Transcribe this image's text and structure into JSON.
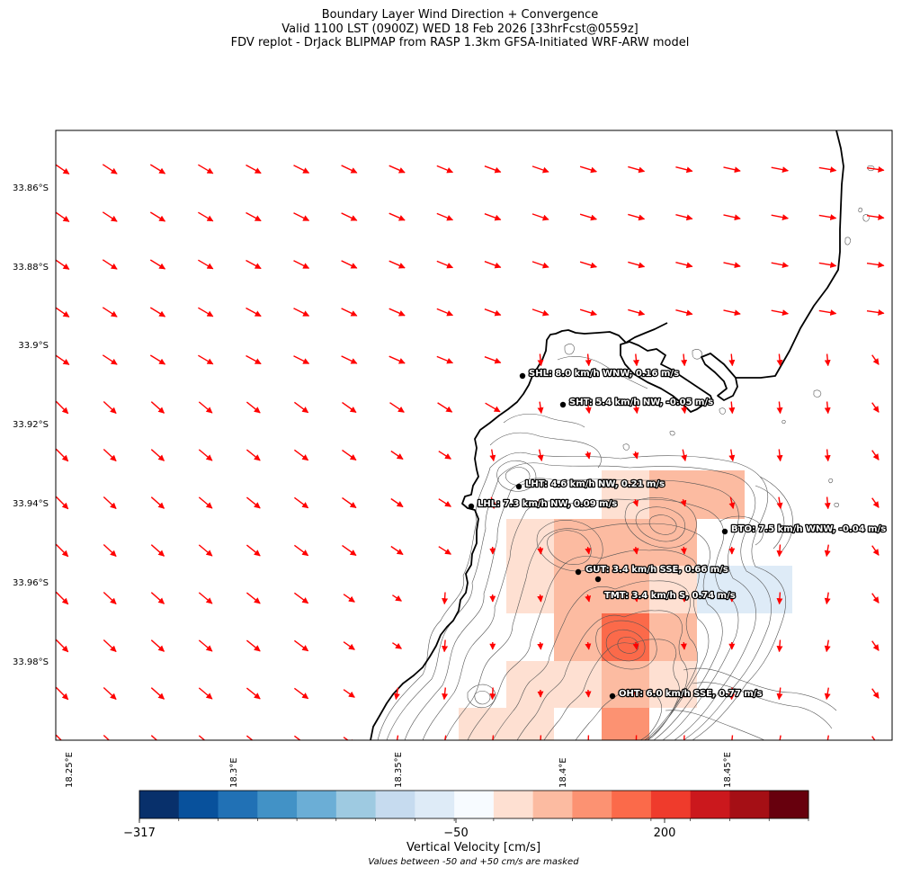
{
  "title": {
    "line1": "Boundary Layer Wind Direction + Convergence",
    "line2": "Valid 1100 LST (0900Z) WED 18 Feb 2026 [33hrFcst@0559z]",
    "line3": "FDV replot - DrJack BLIPMAP from RASP 1.3km GFSA-Initiated WRF-ARW model"
  },
  "map": {
    "lat_labels": [
      "33.86°S",
      "33.88°S",
      "33.9°S",
      "33.92°S",
      "33.94°S",
      "33.96°S",
      "33.98°S"
    ],
    "lon_labels": [
      "18.25°E",
      "18.3°E",
      "18.35°E",
      "18.4°E",
      "18.45°E"
    ],
    "wind_vector_color": "#ff0000",
    "stations": [
      {
        "id": "SHL",
        "label": "SHL: 8.0 km/h WNW, 0.16 m/s"
      },
      {
        "id": "SHT",
        "label": "SHT: 5.4 km/h NW, -0.05 m/s"
      },
      {
        "id": "LHT",
        "label": "LHT: 4.6 km/h NW, 0.21 m/s"
      },
      {
        "id": "LHL",
        "label": "LHL: 7.3 km/h NW, 0.09 m/s"
      },
      {
        "id": "BTO",
        "label": "BTO: 7.5 km/h WNW, -0.04 m/s"
      },
      {
        "id": "GUT",
        "label": "GUT: 3.4 km/h SSE, 0.66 m/s"
      },
      {
        "id": "TMT",
        "label": "TMT: 3.4 km/h S, 0.74 m/s"
      },
      {
        "id": "OHT",
        "label": "OHT: 6.0 km/h SSE, 0.77 m/s"
      }
    ]
  },
  "colorbar": {
    "tick_labels": [
      "−317",
      "−50",
      "200"
    ],
    "label": "Vertical Velocity [cm/s]",
    "note": "Values between -50 and +50 cm/s are masked",
    "colors": [
      "#08306b",
      "#08519c",
      "#2171b5",
      "#4292c6",
      "#6baed6",
      "#9ecae1",
      "#c6dbef",
      "#deebf7",
      "#f7fbff",
      "#fee0d2",
      "#fcbba1",
      "#fc9272",
      "#fb6a4a",
      "#ef3b2c",
      "#cb181d",
      "#a50f15",
      "#67000d"
    ]
  }
}
